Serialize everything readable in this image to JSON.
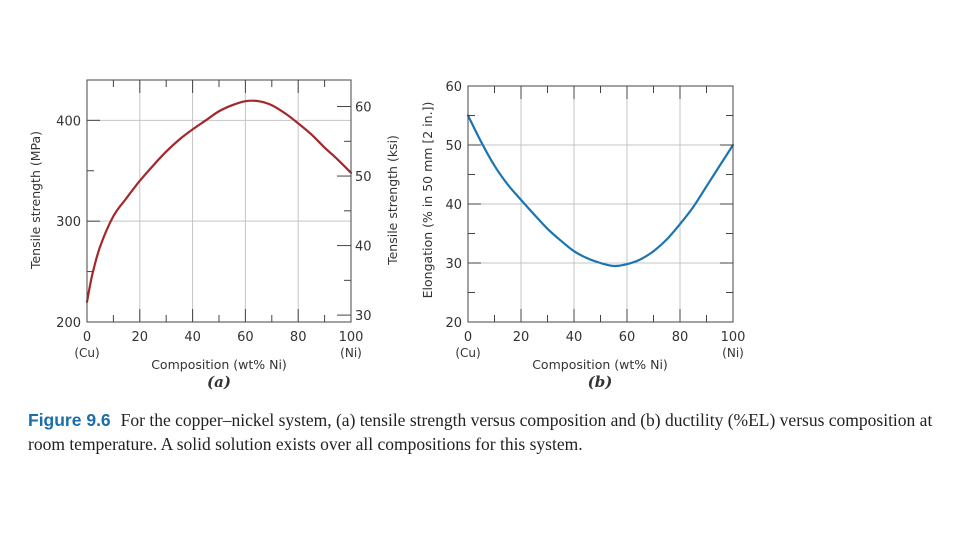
{
  "chart_data": [
    {
      "type": "line",
      "panel_label": "(a)",
      "xlabel": "Composition (wt% Ni)",
      "ylabel": "Tensile strength (MPa)",
      "ylabel_right": "Tensile strength (ksi)",
      "xlim": [
        0,
        100
      ],
      "ylim": [
        200,
        440
      ],
      "ylim_right": [
        29.008,
        63.817
      ],
      "x_ticks": [
        "0",
        "20",
        "40",
        "60",
        "80",
        "100"
      ],
      "x_tick_values": [
        0,
        20,
        40,
        60,
        80,
        100
      ],
      "x_end_labels": [
        "(Cu)",
        "(Ni)"
      ],
      "y_ticks": [
        "200",
        "300",
        "400"
      ],
      "y_tick_values": [
        200,
        300,
        400
      ],
      "y_right_ticks": [
        "30",
        "40",
        "50",
        "60"
      ],
      "y_right_tick_values": [
        30,
        40,
        50,
        60
      ],
      "color": "#a3272b",
      "series": [
        {
          "name": "Tensile strength",
          "x": [
            0,
            2,
            5,
            10,
            15,
            20,
            25,
            30,
            35,
            40,
            45,
            50,
            55,
            60,
            65,
            70,
            75,
            80,
            85,
            90,
            95,
            100
          ],
          "y": [
            220,
            247,
            275,
            305,
            323,
            340,
            355,
            369,
            381,
            391,
            400,
            409,
            415,
            419,
            419,
            415,
            407,
            397,
            386,
            373,
            361,
            348
          ]
        }
      ]
    },
    {
      "type": "line",
      "panel_label": "(b)",
      "xlabel": "Composition (wt% Ni)",
      "ylabel": "Elongation (% in 50 mm [2 in.])",
      "xlim": [
        0,
        100
      ],
      "ylim": [
        20,
        60
      ],
      "x_ticks": [
        "0",
        "20",
        "40",
        "60",
        "80",
        "100"
      ],
      "x_tick_values": [
        0,
        20,
        40,
        60,
        80,
        100
      ],
      "x_end_labels": [
        "(Cu)",
        "(Ni)"
      ],
      "y_ticks": [
        "20",
        "30",
        "40",
        "50",
        "60"
      ],
      "y_tick_values": [
        20,
        30,
        40,
        50,
        60
      ],
      "color": "#1b75b0",
      "series": [
        {
          "name": "Elongation",
          "x": [
            0,
            5,
            10,
            15,
            20,
            25,
            30,
            35,
            40,
            45,
            50,
            55,
            60,
            65,
            70,
            75,
            80,
            85,
            90,
            95,
            100
          ],
          "y": [
            55,
            50.5,
            46.5,
            43.3,
            40.7,
            38.2,
            35.8,
            33.8,
            32,
            30.8,
            30,
            29.5,
            29.8,
            30.6,
            32,
            34,
            36.6,
            39.5,
            43,
            46.5,
            50
          ]
        }
      ]
    }
  ],
  "caption": {
    "label": "Figure 9.6",
    "text": "For the copper–nickel system, (a) tensile strength versus composition and (b) ductility (%EL) versus composition at room temperature. A solid solution exists over all compositions for this system."
  }
}
